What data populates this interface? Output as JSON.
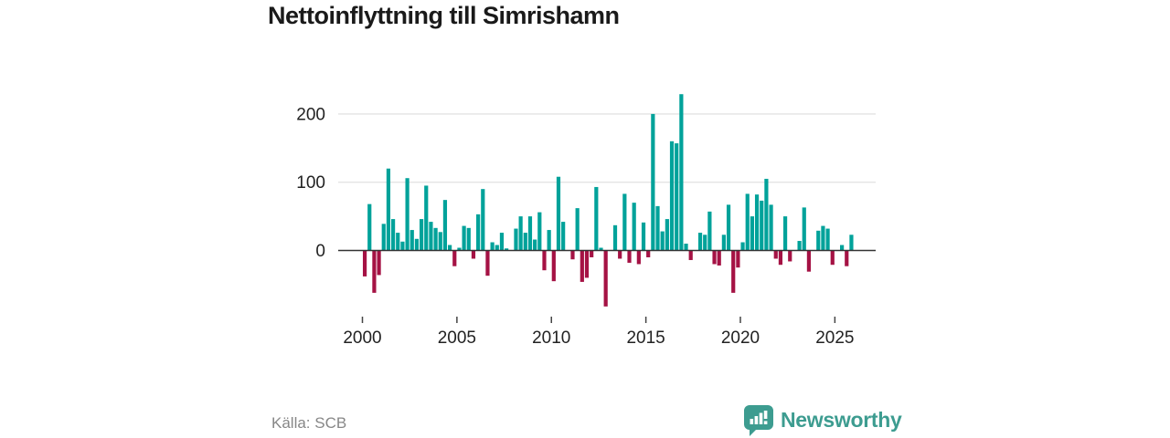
{
  "title": "Nettoinflyttning till Simrishamn",
  "source": "Källa: SCB",
  "logo": {
    "text": "Newsworthy"
  },
  "colors": {
    "positive": "#00a29a",
    "negative": "#a51244",
    "axis": "#333333",
    "grid": "#e4e4e4",
    "tick_text": "#222222",
    "tick_mark": "#444444",
    "title_text": "#1a1a1a",
    "source_text": "#878787",
    "logo_teal": "#3d9c90"
  },
  "chart_data": {
    "type": "bar",
    "title": "Nettoinflyttning till Simrishamn",
    "frequency": "quarterly",
    "start_year": 2000,
    "xlabel": "",
    "ylabel": "",
    "yticks": [
      0,
      100,
      200
    ],
    "xticks": [
      2000,
      2005,
      2010,
      2015,
      2020,
      2025
    ],
    "ylim": [
      -95,
      240
    ],
    "grid": "horizontal",
    "legend": "none",
    "values": [
      -38,
      68,
      -62,
      -36,
      39,
      120,
      46,
      26,
      13,
      106,
      30,
      17,
      46,
      95,
      42,
      33,
      27,
      74,
      8,
      -23,
      4,
      36,
      33,
      -12,
      53,
      90,
      -37,
      12,
      8,
      26,
      3,
      0,
      32,
      50,
      26,
      50,
      16,
      56,
      -29,
      30,
      -45,
      108,
      42,
      0,
      -13,
      62,
      -46,
      -40,
      -10,
      93,
      4,
      -82,
      0,
      37,
      -12,
      83,
      -18,
      70,
      -20,
      41,
      -10,
      200,
      65,
      28,
      46,
      160,
      157,
      229,
      10,
      -14,
      0,
      26,
      23,
      57,
      -20,
      -22,
      23,
      67,
      -62,
      -25,
      12,
      83,
      50,
      82,
      73,
      105,
      67,
      -12,
      -21,
      50,
      -16,
      0,
      14,
      63,
      -31,
      0,
      29,
      36,
      32,
      -21,
      0,
      8,
      -23,
      23
    ]
  }
}
